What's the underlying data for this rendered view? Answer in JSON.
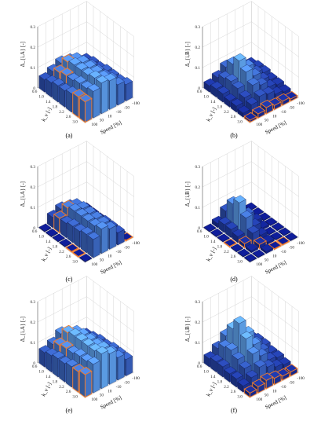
{
  "figure": {
    "panel_labels": [
      "(a)",
      "(b)",
      "(c)",
      "(d)",
      "(e)",
      "(f)"
    ]
  },
  "chart_data": [
    {
      "type": "bar3d",
      "panel": "(a)",
      "zlabel": "Δ_{i,A} [-]",
      "xlabel": "k_v [-]",
      "ylabel": "Speed [%]",
      "x_ticks": [
        "0.6",
        "1.0",
        "1.4",
        "1.8",
        "2.2",
        "2.6",
        "3.0"
      ],
      "y_ticks": [
        "100",
        "50",
        "10",
        "-10",
        "-50",
        "-100"
      ],
      "z_ticks": [
        "0",
        "0.1",
        "0.2",
        "0.3"
      ],
      "zlim": [
        0,
        0.3
      ],
      "values": [
        [
          0.06,
          0.08,
          0.1,
          0.09,
          0.07,
          0.05
        ],
        [
          0.07,
          0.1,
          0.13,
          0.12,
          0.08,
          0.06
        ],
        [
          0.08,
          0.11,
          0.14,
          0.13,
          0.09,
          0.06
        ],
        [
          0.08,
          0.11,
          0.14,
          0.13,
          0.09,
          0.07
        ],
        [
          0.09,
          0.12,
          0.14,
          0.13,
          0.09,
          0.07
        ],
        [
          0.1,
          0.12,
          0.15,
          0.13,
          0.1,
          0.07
        ],
        [
          0.1,
          0.13,
          0.15,
          0.14,
          0.1,
          0.08
        ]
      ],
      "highlighted": [
        [
          1,
          1
        ],
        [
          1,
          2
        ],
        [
          2,
          1
        ],
        [
          6,
          0
        ],
        [
          5,
          0
        ]
      ]
    },
    {
      "type": "bar3d",
      "panel": "(b)",
      "zlabel": "Δ_{i,B} [-]",
      "xlabel": "k_v [-]",
      "ylabel": "Speed [%]",
      "x_ticks": [
        "0.6",
        "1.0",
        "1.4",
        "1.8",
        "2.2",
        "2.6",
        "3.0"
      ],
      "y_ticks": [
        "100",
        "50",
        "10",
        "-10",
        "-50",
        "-100"
      ],
      "z_ticks": [
        "0",
        "0.1",
        "0.2",
        "0.3"
      ],
      "zlim": [
        0,
        0.3
      ],
      "values": [
        [
          0.03,
          0.05,
          0.08,
          0.06,
          0.04,
          0.03
        ],
        [
          0.04,
          0.07,
          0.12,
          0.1,
          0.06,
          0.04
        ],
        [
          0.04,
          0.08,
          0.16,
          0.11,
          0.06,
          0.04
        ],
        [
          0.03,
          0.07,
          0.13,
          0.09,
          0.05,
          0.03
        ],
        [
          0.03,
          0.05,
          0.09,
          0.07,
          0.04,
          0.03
        ],
        [
          0.02,
          0.04,
          0.06,
          0.05,
          0.03,
          0.02
        ],
        [
          0.01,
          0.02,
          0.03,
          0.02,
          0.02,
          0.01
        ]
      ],
      "highlighted": [
        [
          6,
          0
        ],
        [
          6,
          1
        ],
        [
          6,
          2
        ],
        [
          6,
          3
        ],
        [
          6,
          4
        ],
        [
          6,
          5
        ]
      ]
    },
    {
      "type": "bar3d",
      "panel": "(c)",
      "zlabel": "Δ_{i,A} [-]",
      "xlabel": "k_v [-]",
      "ylabel": "Speed [%]",
      "x_ticks": [
        "0.6",
        "1.0",
        "1.4",
        "1.8",
        "2.2",
        "2.6",
        "3.0"
      ],
      "y_ticks": [
        "100",
        "50",
        "10",
        "-10",
        "-50",
        "-100"
      ],
      "z_ticks": [
        "0",
        "0.1",
        "0.2",
        "0.3"
      ],
      "zlim": [
        0,
        0.3
      ],
      "values": [
        [
          0.0,
          0.05,
          0.07,
          0.06,
          0.02,
          0.0
        ],
        [
          0.0,
          0.07,
          0.1,
          0.09,
          0.03,
          0.0
        ],
        [
          0.0,
          0.07,
          0.11,
          0.1,
          0.04,
          0.0
        ],
        [
          0.0,
          0.08,
          0.11,
          0.1,
          0.05,
          0.0
        ],
        [
          0.0,
          0.08,
          0.11,
          0.1,
          0.06,
          0.0
        ],
        [
          0.0,
          0.09,
          0.11,
          0.1,
          0.06,
          0.0
        ],
        [
          0.0,
          0.09,
          0.12,
          0.1,
          0.06,
          0.0
        ]
      ],
      "highlighted": [
        [
          1,
          1
        ],
        [
          1,
          2
        ],
        [
          4,
          0
        ],
        [
          5,
          0
        ],
        [
          6,
          5
        ]
      ]
    },
    {
      "type": "bar3d",
      "panel": "(d)",
      "zlabel": "Δ_{i,B} [-]",
      "xlabel": "k_v [-]",
      "ylabel": "Speed [%]",
      "x_ticks": [
        "0.6",
        "1.0",
        "1.4",
        "1.8",
        "2.2",
        "2.6",
        "3.0"
      ],
      "y_ticks": [
        "100",
        "50",
        "10",
        "-10",
        "-50",
        "-100"
      ],
      "z_ticks": [
        "0",
        "0.1",
        "0.2",
        "0.3"
      ],
      "zlim": [
        0,
        0.3
      ],
      "values": [
        [
          0.0,
          0.02,
          0.06,
          0.03,
          0.0,
          0.0
        ],
        [
          0.0,
          0.04,
          0.12,
          0.06,
          0.01,
          0.0
        ],
        [
          0.0,
          0.04,
          0.15,
          0.07,
          0.02,
          0.0
        ],
        [
          0.0,
          0.03,
          0.1,
          0.04,
          0.01,
          0.0
        ],
        [
          0.0,
          0.02,
          0.05,
          0.02,
          0.0,
          0.0
        ],
        [
          0.0,
          0.01,
          0.02,
          0.01,
          0.0,
          0.0
        ],
        [
          0.0,
          0.0,
          0.01,
          0.0,
          0.0,
          0.0
        ]
      ],
      "highlighted": [
        [
          3,
          0
        ],
        [
          4,
          1
        ],
        [
          5,
          2
        ],
        [
          6,
          3
        ],
        [
          6,
          4
        ]
      ]
    },
    {
      "type": "bar3d",
      "panel": "(e)",
      "zlabel": "Δ_{i,A} [-]",
      "xlabel": "k_v [-]",
      "ylabel": "Speed [%]",
      "x_ticks": [
        "0.6",
        "1.0",
        "1.4",
        "1.8",
        "2.2",
        "2.6",
        "3.0"
      ],
      "y_ticks": [
        "100",
        "50",
        "10",
        "-10",
        "-50",
        "-100"
      ],
      "z_ticks": [
        "0",
        "0.1",
        "0.2",
        "0.3"
      ],
      "zlim": [
        0,
        0.3
      ],
      "values": [
        [
          0.07,
          0.09,
          0.12,
          0.1,
          0.07,
          0.05
        ],
        [
          0.08,
          0.11,
          0.15,
          0.13,
          0.09,
          0.06
        ],
        [
          0.09,
          0.12,
          0.16,
          0.14,
          0.1,
          0.07
        ],
        [
          0.09,
          0.12,
          0.16,
          0.14,
          0.1,
          0.07
        ],
        [
          0.1,
          0.13,
          0.16,
          0.14,
          0.1,
          0.08
        ],
        [
          0.1,
          0.13,
          0.16,
          0.15,
          0.11,
          0.08
        ],
        [
          0.11,
          0.14,
          0.17,
          0.15,
          0.11,
          0.08
        ]
      ],
      "highlighted": [
        [
          1,
          1
        ],
        [
          1,
          2
        ],
        [
          2,
          1
        ],
        [
          6,
          0
        ],
        [
          5,
          0
        ]
      ]
    },
    {
      "type": "bar3d",
      "panel": "(f)",
      "zlabel": "Δ_{i,B} [-]",
      "xlabel": "k_v [-]",
      "ylabel": "Speed [%]",
      "x_ticks": [
        "0.6",
        "1.0",
        "1.4",
        "1.8",
        "2.2",
        "2.6",
        "3.0"
      ],
      "y_ticks": [
        "100",
        "50",
        "10",
        "-10",
        "-50",
        "-100"
      ],
      "z_ticks": [
        "0",
        "0.1",
        "0.2",
        "0.3"
      ],
      "zlim": [
        0,
        0.3
      ],
      "values": [
        [
          0.04,
          0.07,
          0.11,
          0.08,
          0.05,
          0.04
        ],
        [
          0.05,
          0.1,
          0.17,
          0.13,
          0.07,
          0.05
        ],
        [
          0.05,
          0.11,
          0.22,
          0.15,
          0.08,
          0.05
        ],
        [
          0.04,
          0.09,
          0.17,
          0.12,
          0.07,
          0.04
        ],
        [
          0.04,
          0.07,
          0.12,
          0.09,
          0.05,
          0.04
        ],
        [
          0.03,
          0.05,
          0.08,
          0.06,
          0.04,
          0.03
        ],
        [
          0.02,
          0.03,
          0.04,
          0.03,
          0.02,
          0.02
        ]
      ],
      "highlighted": [
        [
          6,
          0
        ],
        [
          6,
          1
        ],
        [
          6,
          2
        ],
        [
          6,
          3
        ],
        [
          6,
          4
        ],
        [
          6,
          5
        ]
      ]
    }
  ],
  "colors": {
    "low": "#0d1a8a",
    "high": "#62a8f5",
    "highlight_edge": "#f07a2a",
    "bar_edge": "#0a0f3c"
  }
}
